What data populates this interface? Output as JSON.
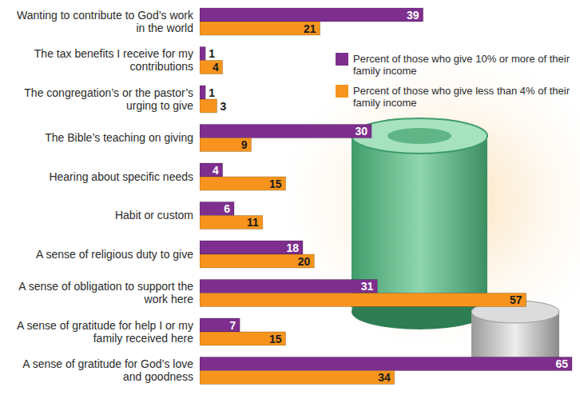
{
  "chart_data": {
    "type": "bar",
    "orientation": "horizontal",
    "categories": [
      "Wanting to contribute to God’s work in the world",
      "The tax benefits I receive for my contributions",
      "The congregation’s or the pastor’s urging to give",
      "The Bible’s teaching on giving",
      "Hearing about specific needs",
      "Habit or custom",
      "A sense of religious duty to give",
      "A sense of obligation to support the work here",
      "A sense of gratitude for help I or my family received here",
      "A sense of gratitude for God’s love and goodness"
    ],
    "series": [
      {
        "name": "Percent of those who give 10% or more of their family income",
        "color": "#7e2f8e",
        "values": [
          39,
          1,
          1,
          30,
          4,
          6,
          18,
          31,
          7,
          65
        ]
      },
      {
        "name": "Percent of those who give less than 4% of their family income",
        "color": "#f7941d",
        "values": [
          21,
          4,
          3,
          9,
          15,
          11,
          20,
          57,
          15,
          34
        ]
      }
    ],
    "xlim": [
      0,
      65
    ],
    "data_labels": true,
    "tick_labels": false,
    "grid": false,
    "legend": "top-right"
  }
}
